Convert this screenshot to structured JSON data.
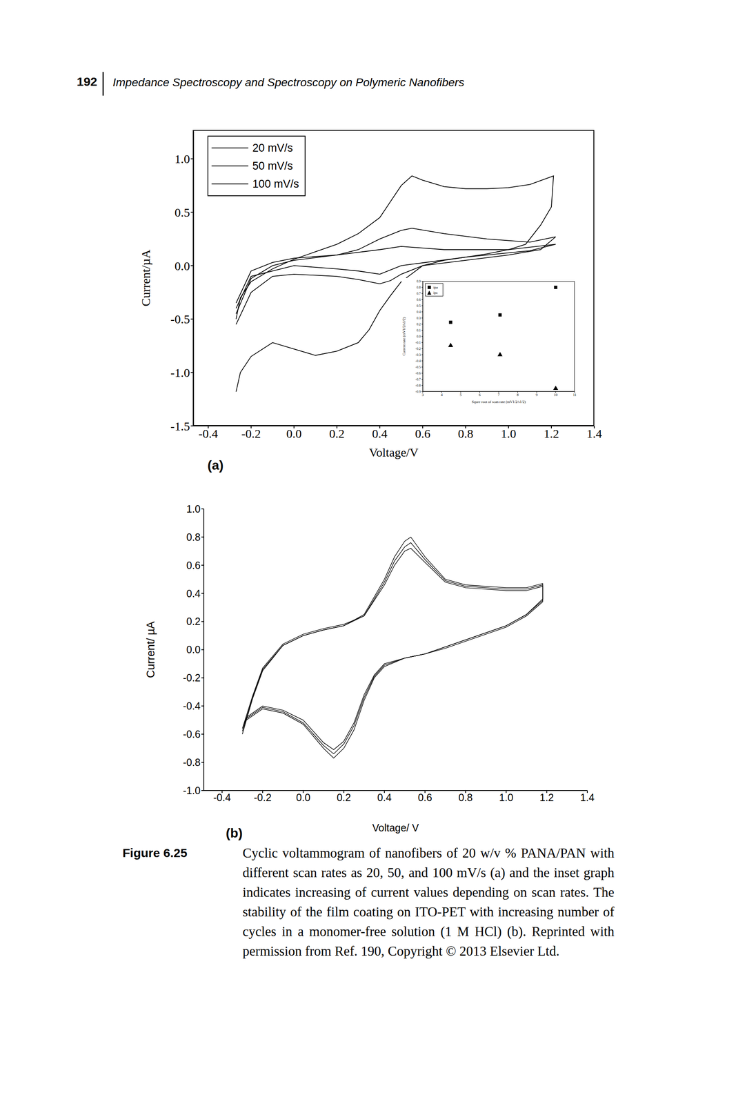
{
  "page_number": "192",
  "running_head": "Impedance Spectroscopy and Spectroscopy on Polymeric Nanofibers",
  "chart_data": [
    {
      "type": "line",
      "panel": "(a)",
      "x_label": "Voltage/V",
      "y_label": "Current/µA",
      "xlim": [
        -0.47,
        1.4
      ],
      "ylim": [
        -1.5,
        1.27
      ],
      "xticks": [
        -0.4,
        -0.2,
        {
          "value": 0,
          "label": "0.0"
        },
        0.2,
        0.4,
        0.6,
        0.8,
        {
          "value": 1,
          "label": "1.0"
        },
        1.2,
        1.4
      ],
      "yticks": [
        -1.5,
        {
          "value": -1,
          "label": "-1.0"
        },
        -0.5,
        {
          "value": 0,
          "label": "0.0"
        },
        0.5,
        {
          "value": 1,
          "label": "1.0"
        }
      ],
      "legend": "upper left",
      "series": [
        {
          "name": "20 mV/s",
          "color": "#000000",
          "x": [
            -0.27,
            -0.2,
            -0.1,
            0.0,
            0.2,
            0.4,
            0.5,
            0.7,
            1.0,
            1.22,
            1.1,
            0.8,
            0.5,
            0.4,
            0.3,
            0.2,
            0.0,
            -0.2,
            -0.27
          ],
          "values": [
            -0.35,
            -0.05,
            0.03,
            0.07,
            0.1,
            0.15,
            0.18,
            0.15,
            0.15,
            0.2,
            0.14,
            0.08,
            0.0,
            -0.08,
            -0.05,
            -0.03,
            0.0,
            -0.1,
            -0.4
          ]
        },
        {
          "name": "50 mV/s",
          "color": "#000000",
          "x": [
            -0.27,
            -0.2,
            -0.1,
            0.0,
            0.2,
            0.3,
            0.4,
            0.5,
            0.55,
            0.7,
            0.9,
            1.1,
            1.22,
            1.15,
            1.0,
            0.8,
            0.6,
            0.5,
            0.45,
            0.4,
            0.3,
            0.2,
            0.0,
            -0.1,
            -0.2,
            -0.27
          ],
          "values": [
            -0.45,
            -0.12,
            0.0,
            0.05,
            0.1,
            0.15,
            0.25,
            0.33,
            0.35,
            0.3,
            0.25,
            0.22,
            0.27,
            0.15,
            0.1,
            0.05,
            0.0,
            -0.08,
            -0.14,
            -0.17,
            -0.13,
            -0.1,
            -0.08,
            -0.1,
            -0.25,
            -0.55
          ]
        },
        {
          "name": "100 mV/s",
          "color": "#000000",
          "x": [
            -0.27,
            -0.25,
            -0.2,
            -0.1,
            0.0,
            0.1,
            0.2,
            0.3,
            0.4,
            0.45,
            0.5,
            0.55,
            0.6,
            0.7,
            0.8,
            0.9,
            1.0,
            1.1,
            1.21,
            1.2,
            1.15,
            1.08,
            1.0,
            0.9,
            0.8,
            0.7,
            0.6,
            0.5,
            0.45,
            0.4,
            0.35,
            0.3,
            0.2,
            0.1,
            0.0,
            -0.1,
            -0.2,
            -0.25,
            -0.27
          ],
          "values": [
            -0.5,
            -0.3,
            -0.15,
            -0.03,
            0.06,
            0.13,
            0.2,
            0.3,
            0.45,
            0.6,
            0.75,
            0.84,
            0.8,
            0.74,
            0.72,
            0.72,
            0.73,
            0.76,
            0.84,
            0.55,
            0.38,
            0.2,
            0.15,
            0.11,
            0.08,
            0.05,
            0.0,
            -0.15,
            -0.28,
            -0.42,
            -0.6,
            -0.72,
            -0.8,
            -0.84,
            -0.78,
            -0.72,
            -0.85,
            -1.0,
            -1.18
          ]
        }
      ]
    },
    {
      "type": "scatter",
      "x_label": "Squre root of scan rate (mV1/2/s1/2)",
      "y_label": "Current rate (mV1/2/s1/2)",
      "xlim": [
        3,
        11
      ],
      "ylim": [
        -0.9,
        0.9
      ],
      "xticks": [
        3,
        4,
        5,
        6,
        7,
        8,
        9,
        10,
        11
      ],
      "yticks": [
        -0.9,
        -0.8,
        -0.7,
        -0.6,
        -0.5,
        -0.4,
        -0.3,
        -0.2,
        -0.1,
        {
          "value": 0,
          "label": "0.0"
        },
        0.1,
        0.2,
        0.3,
        0.4,
        0.5,
        0.6,
        0.7,
        0.8,
        0.9
      ],
      "legend": "upper left",
      "series": [
        {
          "name": "ipa",
          "color": "#000000",
          "marker": "square",
          "x": [
            4.47,
            7.07,
            10
          ],
          "values": [
            0.23,
            0.35,
            0.8
          ]
        },
        {
          "name": "ipc",
          "color": "#000000",
          "marker": "triangle",
          "x": [
            4.47,
            7.07,
            10
          ],
          "values": [
            -0.15,
            -0.3,
            -0.85
          ]
        }
      ]
    },
    {
      "type": "line",
      "panel": "(b)",
      "x_label": "Voltage/ V",
      "y_label": "Current/ µA",
      "xlim": [
        -0.49,
        1.4
      ],
      "ylim": [
        -1,
        1
      ],
      "xticks": [
        -0.4,
        -0.2,
        {
          "value": 0,
          "label": "0.0"
        },
        0.2,
        0.4,
        0.6,
        0.8,
        {
          "value": 1,
          "label": "1.0"
        },
        1.2,
        1.4
      ],
      "yticks": [
        {
          "value": -1,
          "label": "-1.0"
        },
        -0.8,
        -0.6,
        -0.4,
        -0.2,
        {
          "value": 0,
          "label": "0.0"
        },
        0.2,
        0.4,
        0.6,
        0.8,
        {
          "value": 1,
          "label": "1.0"
        }
      ],
      "x": [
        -0.3,
        -0.25,
        -0.2,
        -0.1,
        0.0,
        0.1,
        0.2,
        0.3,
        0.4,
        0.45,
        0.5,
        0.53,
        0.6,
        0.7,
        0.8,
        0.9,
        1.0,
        1.1,
        1.18,
        1.18,
        1.1,
        1.0,
        0.9,
        0.8,
        0.7,
        0.6,
        0.5,
        0.4,
        0.35,
        0.3,
        0.25,
        0.2,
        0.15,
        0.1,
        0.0,
        -0.1,
        -0.2,
        -0.28,
        -0.3
      ],
      "series": [
        {
          "color": "#000000",
          "values": [
            -0.6,
            -0.35,
            -0.15,
            0.03,
            0.1,
            0.14,
            0.17,
            0.25,
            0.5,
            0.66,
            0.77,
            0.8,
            0.66,
            0.5,
            0.46,
            0.45,
            0.44,
            0.44,
            0.47,
            0.36,
            0.25,
            0.17,
            0.12,
            0.07,
            0.02,
            -0.03,
            -0.06,
            -0.12,
            -0.2,
            -0.36,
            -0.57,
            -0.7,
            -0.77,
            -0.7,
            -0.53,
            -0.45,
            -0.42,
            -0.5,
            -0.6
          ]
        },
        {
          "color": "#000000",
          "values": [
            -0.58,
            -0.34,
            -0.14,
            0.03,
            0.1,
            0.14,
            0.17,
            0.24,
            0.48,
            0.63,
            0.73,
            0.76,
            0.64,
            0.49,
            0.45,
            0.44,
            0.43,
            0.43,
            0.46,
            0.35,
            0.25,
            0.17,
            0.12,
            0.07,
            0.02,
            -0.03,
            -0.06,
            -0.11,
            -0.19,
            -0.34,
            -0.54,
            -0.67,
            -0.74,
            -0.68,
            -0.52,
            -0.44,
            -0.41,
            -0.49,
            -0.58
          ]
        },
        {
          "color": "#000000",
          "values": [
            -0.56,
            -0.33,
            -0.13,
            0.04,
            0.11,
            0.15,
            0.18,
            0.24,
            0.46,
            0.6,
            0.7,
            0.72,
            0.62,
            0.48,
            0.44,
            0.43,
            0.42,
            0.42,
            0.45,
            0.34,
            0.24,
            0.16,
            0.11,
            0.06,
            0.01,
            -0.03,
            -0.06,
            -0.1,
            -0.18,
            -0.32,
            -0.52,
            -0.65,
            -0.71,
            -0.66,
            -0.5,
            -0.43,
            -0.4,
            -0.48,
            -0.56
          ]
        }
      ]
    }
  ],
  "caption": {
    "label": "Figure 6.25",
    "text": "Cyclic voltammogram of nanofibers of 20 w/v % PANA/PAN with different scan rates as 20, 50, and 100 mV/s (a) and the inset graph indicates increasing of current values depending on scan rates. The stability of the film coating on ITO-PET with increasing number of cycles in a monomer-free solution (1 M HCl) (b). Reprinted with permission from Ref. 190, Copyright © 2013 Elsevier Ltd."
  }
}
